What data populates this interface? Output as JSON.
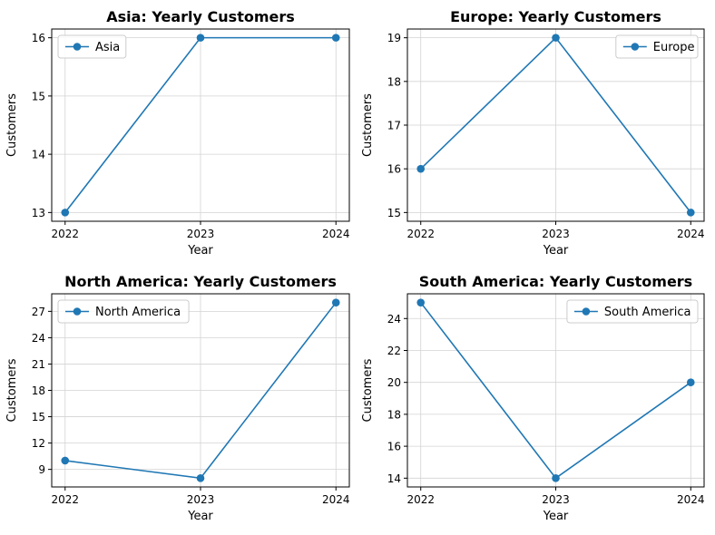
{
  "colors": {
    "series": "#1f77b4",
    "grid": "#d3d3d3",
    "axis": "#000000"
  },
  "chart_data": [
    {
      "type": "line",
      "title": "Asia: Yearly Customers",
      "xlabel": "Year",
      "ylabel": "Customers",
      "x": [
        "2022",
        "2023",
        "2024"
      ],
      "series": [
        {
          "name": "Asia",
          "values": [
            13,
            16,
            16
          ]
        }
      ],
      "ylim": [
        12.85,
        16.15
      ],
      "yticks": [
        13,
        14,
        15,
        16
      ],
      "grid": true,
      "legend": "upper left"
    },
    {
      "type": "line",
      "title": "Europe: Yearly Customers",
      "xlabel": "Year",
      "ylabel": "Customers",
      "x": [
        "2022",
        "2023",
        "2024"
      ],
      "series": [
        {
          "name": "Europe",
          "values": [
            16,
            19,
            15
          ]
        }
      ],
      "ylim": [
        14.8,
        19.2
      ],
      "yticks": [
        15,
        16,
        17,
        18,
        19
      ],
      "grid": true,
      "legend": "upper right"
    },
    {
      "type": "line",
      "title": "North America: Yearly Customers",
      "xlabel": "Year",
      "ylabel": "Customers",
      "x": [
        "2022",
        "2023",
        "2024"
      ],
      "series": [
        {
          "name": "North America",
          "values": [
            10,
            8,
            28
          ]
        }
      ],
      "ylim": [
        7,
        29
      ],
      "yticks": [
        9,
        12,
        15,
        18,
        21,
        24,
        27
      ],
      "grid": true,
      "legend": "upper left"
    },
    {
      "type": "line",
      "title": "South America: Yearly Customers",
      "xlabel": "Year",
      "ylabel": "Customers",
      "x": [
        "2022",
        "2023",
        "2024"
      ],
      "series": [
        {
          "name": "South America",
          "values": [
            25,
            14,
            20
          ]
        }
      ],
      "ylim": [
        13.45,
        25.55
      ],
      "yticks": [
        14,
        16,
        18,
        20,
        22,
        24
      ],
      "grid": true,
      "legend": "upper right"
    }
  ]
}
